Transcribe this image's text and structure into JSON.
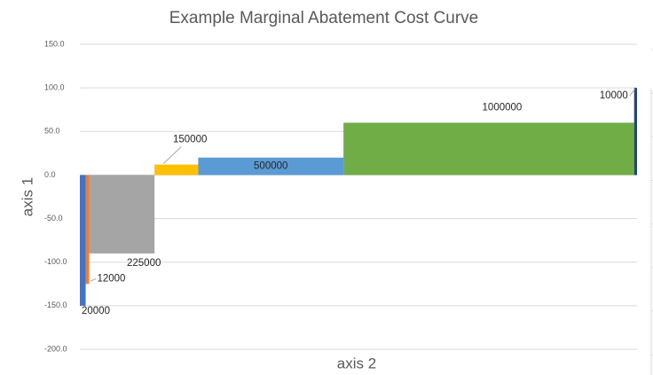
{
  "chart_data": {
    "type": "bar",
    "title": "Example Marginal Abatement Cost Curve",
    "x_label": "axis 2",
    "y_label": "axis 1",
    "series": [
      {
        "color": "#4472c4",
        "width": 20000,
        "value": -150
      },
      {
        "color": "#ed7d31",
        "width": 12000,
        "value": -125
      },
      {
        "color": "#a5a5a5",
        "width": 225000,
        "value": -90
      },
      {
        "color": "#ffc000",
        "width": 150000,
        "value": 12
      },
      {
        "color": "#5b9bd5",
        "width": 500000,
        "value": 20
      },
      {
        "color": "#70ad47",
        "width": 1000000,
        "value": 60
      },
      {
        "color": "#264478",
        "width": 10000,
        "value": 100
      }
    ],
    "ylim": [
      -200,
      150
    ],
    "yticks": [
      {
        "value": -200,
        "label": "-200.0"
      },
      {
        "value": -150,
        "label": "-150.0"
      },
      {
        "value": -100,
        "label": "-100.0"
      },
      {
        "value": -50,
        "label": "-50.0"
      },
      {
        "value": 0,
        "label": "0.0"
      },
      {
        "value": 50,
        "label": "50.0"
      },
      {
        "value": 100,
        "label": "100.0"
      },
      {
        "value": 150,
        "label": "150.0"
      }
    ],
    "grid": true
  }
}
